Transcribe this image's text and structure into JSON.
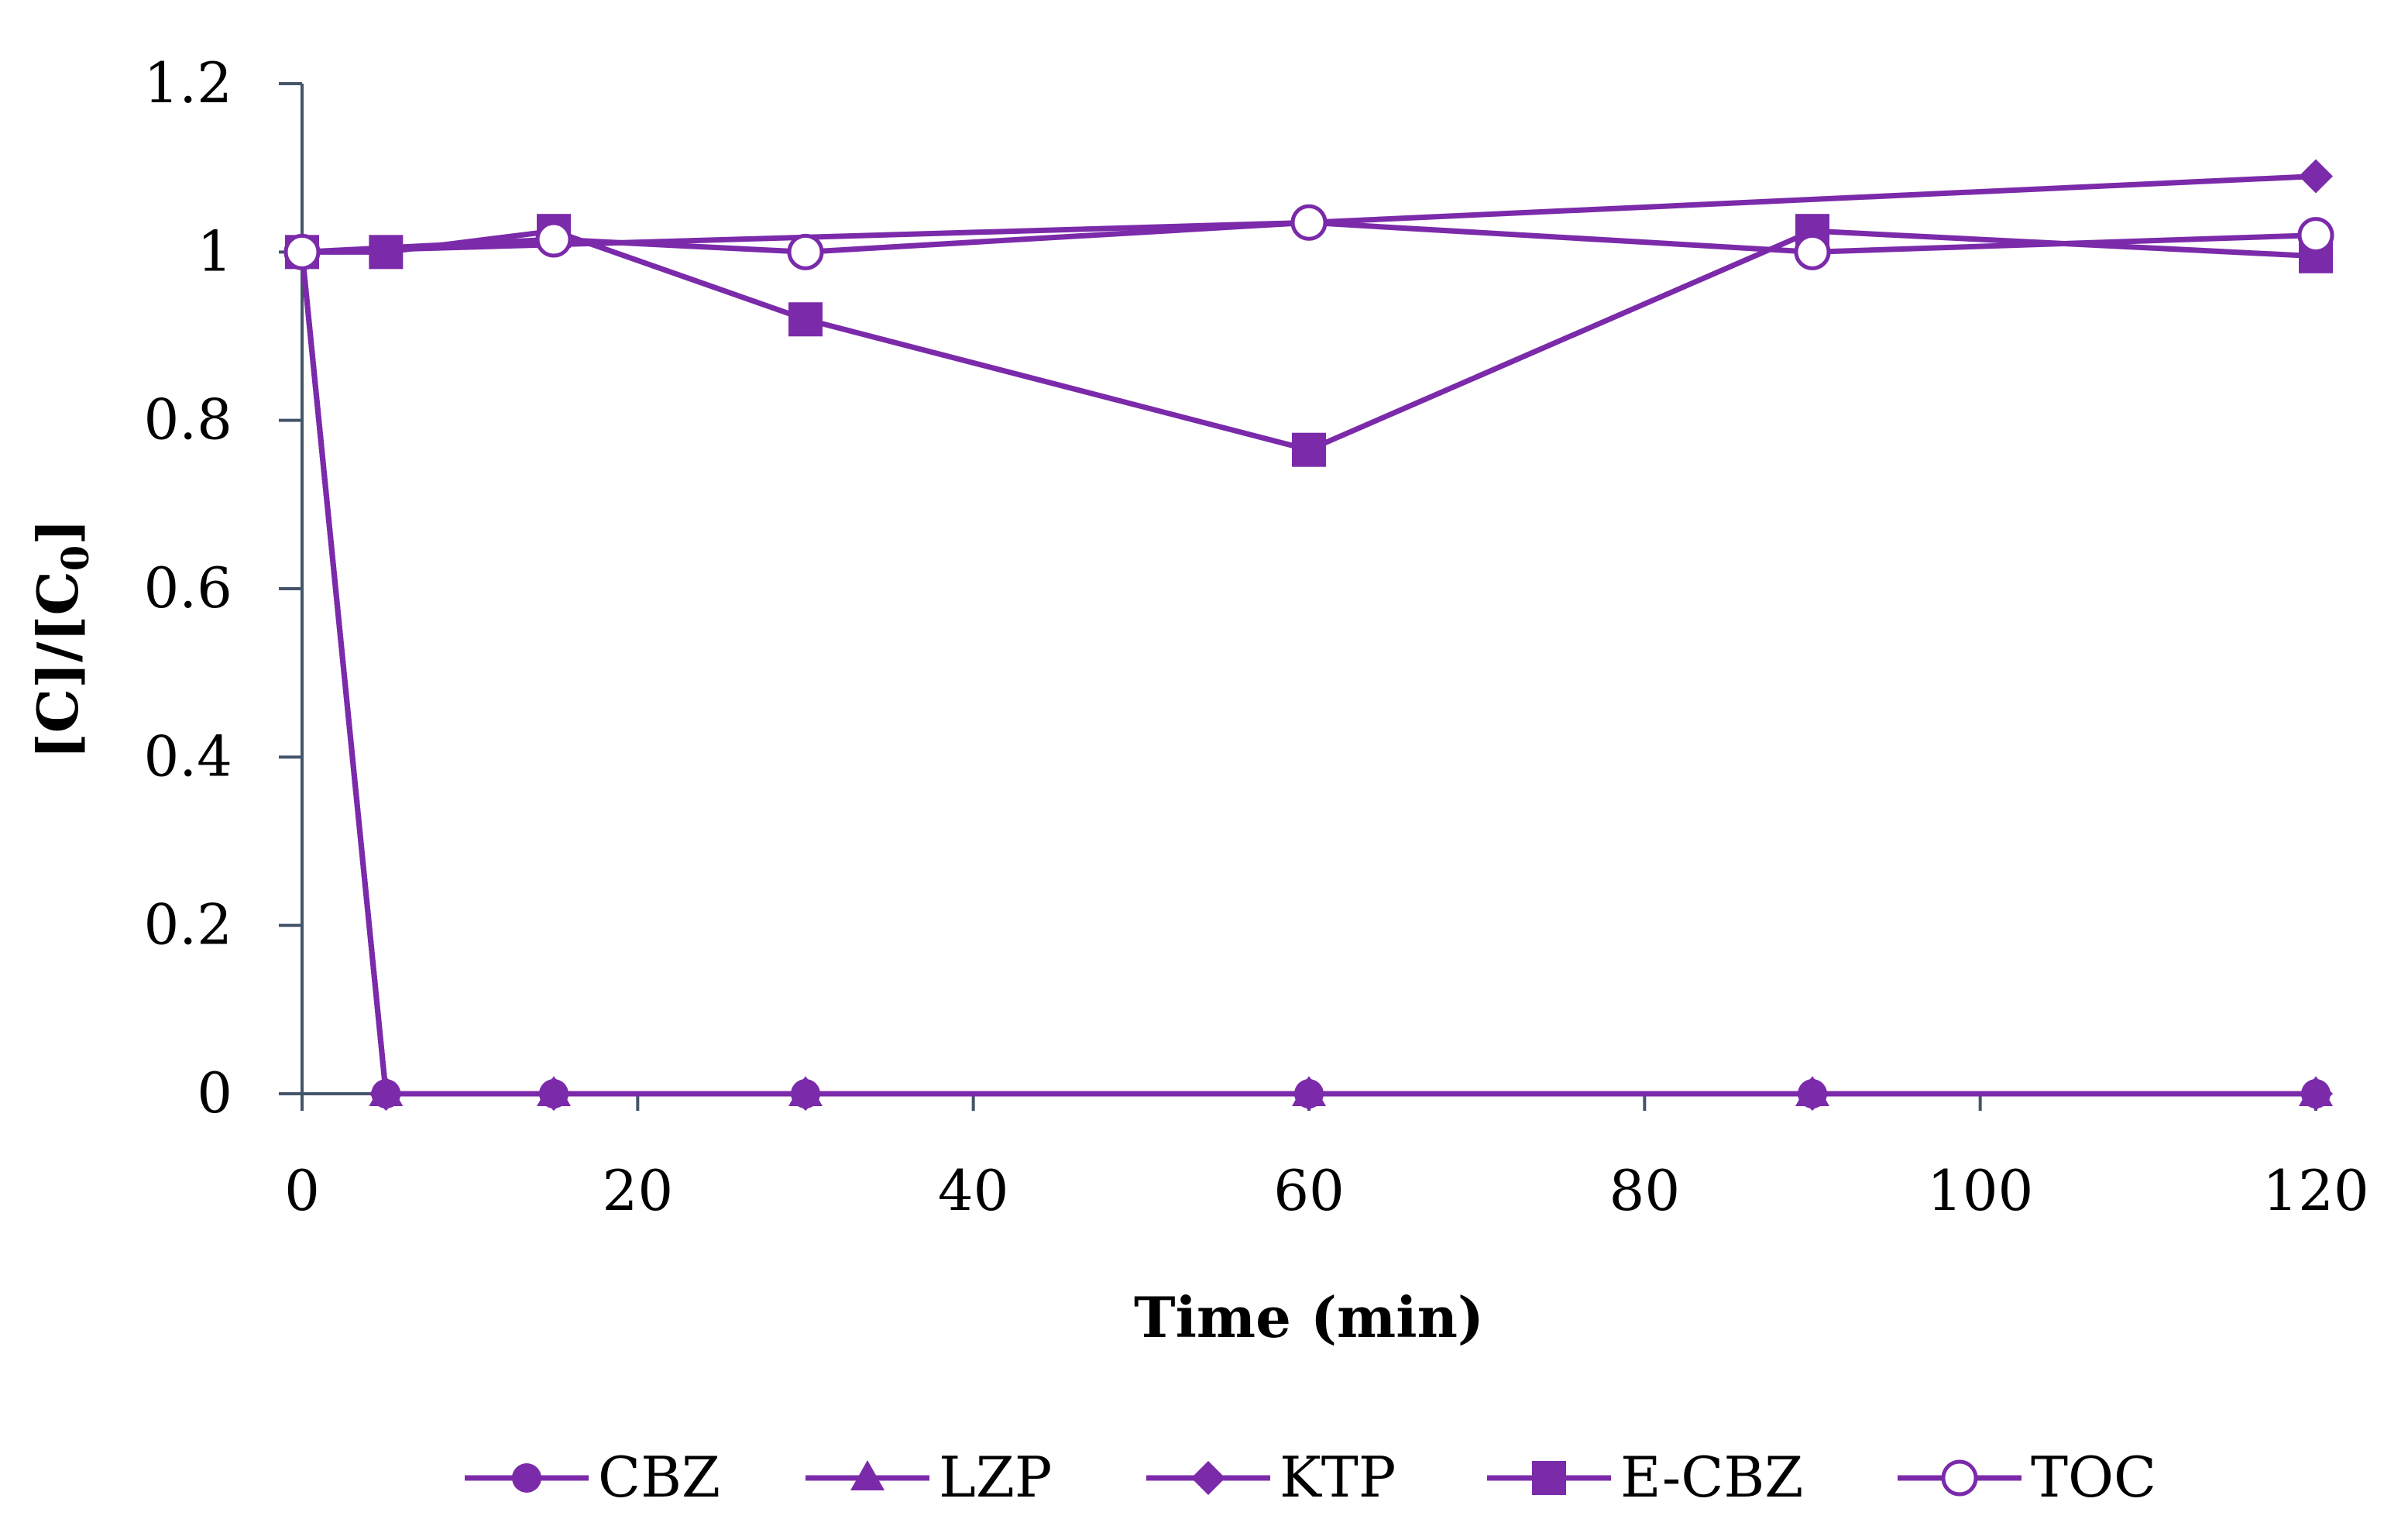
{
  "chart_data": {
    "type": "line",
    "title": "",
    "xlabel": "Time (min)",
    "ylabel_main": "[C]/[C",
    "ylabel_sub": "0",
    "ylabel_end": "]",
    "xlim": [
      0,
      120
    ],
    "ylim": [
      0,
      1.2
    ],
    "xticks": [
      0,
      20,
      40,
      60,
      80,
      100,
      120
    ],
    "xtick_labels": [
      "0",
      "20",
      "40",
      "60",
      "80",
      "100",
      "120"
    ],
    "yticks": [
      0,
      0.2,
      0.4,
      0.6,
      0.8,
      1.0,
      1.2
    ],
    "ytick_labels": [
      "0",
      "0.2",
      "0.4",
      "0.6",
      "0.8",
      "1",
      "1.2"
    ],
    "grid": false,
    "legend_position": "bottom",
    "color": "#7b2aaa",
    "series": [
      {
        "name": "CBZ",
        "marker": "circle",
        "x": [
          0,
          5,
          15,
          30,
          60,
          90,
          120
        ],
        "y": [
          1.0,
          0.0,
          0.0,
          0.0,
          0.0,
          0.0,
          0.0
        ]
      },
      {
        "name": "LZP",
        "marker": "triangle",
        "x": [
          0,
          5,
          15,
          30,
          60,
          90,
          120
        ],
        "y": [
          1.0,
          0.0,
          0.0,
          0.0,
          0.0,
          0.0,
          0.0
        ]
      },
      {
        "name": "KTP",
        "marker": "diamond",
        "x": [
          0,
          5,
          15,
          30,
          60,
          90,
          120
        ],
        "y": [
          1.0,
          0.0,
          0.0,
          0.0,
          0.0,
          0.0,
          0.0
        ]
      },
      {
        "name": "E-CBZ",
        "marker": "square",
        "x": [
          0,
          5,
          15,
          30,
          60,
          90,
          120
        ],
        "y": [
          1.0,
          1.0,
          1.025,
          0.92,
          0.765,
          1.025,
          0.995
        ]
      },
      {
        "name": "TOC",
        "marker": "open-circle",
        "x": [
          0,
          15,
          30,
          60,
          90,
          120
        ],
        "y": [
          1.0,
          1.015,
          1.0,
          1.035,
          1.0,
          1.02
        ]
      },
      {
        "name": "KTP (upper)",
        "legend": false,
        "marker": "diamond",
        "x": [
          0,
          60,
          120
        ],
        "y": [
          1.0,
          1.035,
          1.09
        ]
      }
    ]
  }
}
